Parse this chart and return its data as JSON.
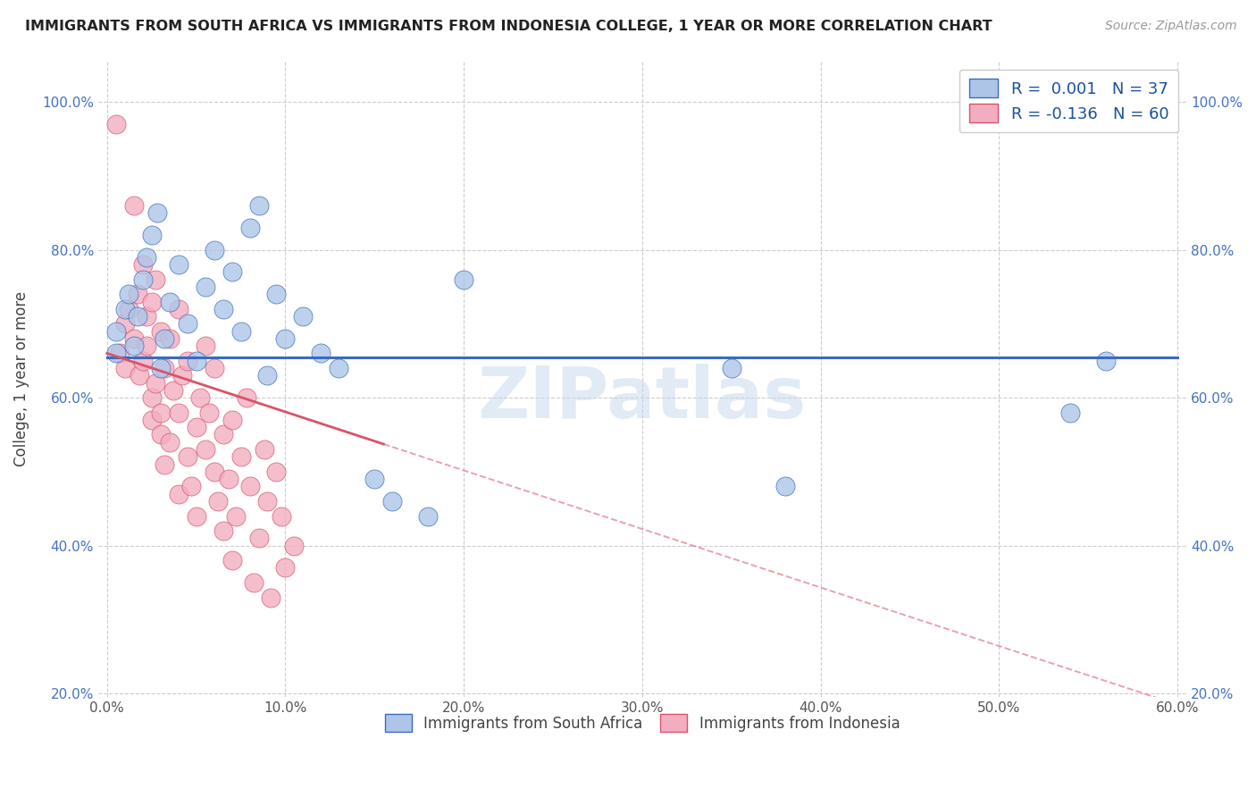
{
  "title": "IMMIGRANTS FROM SOUTH AFRICA VS IMMIGRANTS FROM INDONESIA COLLEGE, 1 YEAR OR MORE CORRELATION CHART",
  "source": "Source: ZipAtlas.com",
  "ylabel": "College, 1 year or more",
  "legend_label_1": "Immigrants from South Africa",
  "legend_label_2": "Immigrants from Indonesia",
  "legend_r1": "R =  0.001",
  "legend_n1": "N = 37",
  "legend_r2": "R = -0.136",
  "legend_n2": "N = 60",
  "color_blue": "#adc6e8",
  "color_pink": "#f2aec0",
  "trend_blue": "#3a6bbf",
  "trend_pink": "#d9536a",
  "xlim": [
    -0.005,
    0.605
  ],
  "ylim": [
    0.195,
    1.055
  ],
  "xticks": [
    0.0,
    0.1,
    0.2,
    0.3,
    0.4,
    0.5,
    0.6
  ],
  "xticklabels": [
    "0.0%",
    "10.0%",
    "20.0%",
    "30.0%",
    "40.0%",
    "50.0%",
    "60.0%"
  ],
  "yticks": [
    0.2,
    0.4,
    0.6,
    0.8,
    1.0
  ],
  "yticklabels": [
    "20.0%",
    "40.0%",
    "60.0%",
    "80.0%",
    "100.0%"
  ],
  "sa_x": [
    0.005,
    0.005,
    0.01,
    0.012,
    0.015,
    0.017,
    0.02,
    0.022,
    0.025,
    0.028,
    0.03,
    0.032,
    0.035,
    0.04,
    0.045,
    0.05,
    0.055,
    0.06,
    0.065,
    0.07,
    0.075,
    0.08,
    0.085,
    0.09,
    0.095,
    0.1,
    0.11,
    0.12,
    0.13,
    0.15,
    0.16,
    0.18,
    0.2,
    0.35,
    0.38,
    0.54,
    0.56
  ],
  "sa_y": [
    0.66,
    0.69,
    0.72,
    0.74,
    0.67,
    0.71,
    0.76,
    0.79,
    0.82,
    0.85,
    0.64,
    0.68,
    0.73,
    0.78,
    0.7,
    0.65,
    0.75,
    0.8,
    0.72,
    0.77,
    0.69,
    0.83,
    0.86,
    0.63,
    0.74,
    0.68,
    0.71,
    0.66,
    0.64,
    0.49,
    0.46,
    0.44,
    0.76,
    0.64,
    0.48,
    0.58,
    0.65
  ],
  "ind_x": [
    0.005,
    0.007,
    0.01,
    0.01,
    0.012,
    0.015,
    0.015,
    0.017,
    0.018,
    0.02,
    0.02,
    0.022,
    0.022,
    0.025,
    0.025,
    0.025,
    0.027,
    0.027,
    0.03,
    0.03,
    0.03,
    0.032,
    0.032,
    0.035,
    0.035,
    0.037,
    0.04,
    0.04,
    0.04,
    0.042,
    0.045,
    0.045,
    0.047,
    0.05,
    0.05,
    0.052,
    0.055,
    0.055,
    0.057,
    0.06,
    0.06,
    0.062,
    0.065,
    0.065,
    0.068,
    0.07,
    0.07,
    0.072,
    0.075,
    0.078,
    0.08,
    0.082,
    0.085,
    0.088,
    0.09,
    0.092,
    0.095,
    0.098,
    0.1,
    0.105
  ],
  "ind_y": [
    0.97,
    0.66,
    0.7,
    0.64,
    0.72,
    0.86,
    0.68,
    0.74,
    0.63,
    0.78,
    0.65,
    0.71,
    0.67,
    0.6,
    0.73,
    0.57,
    0.76,
    0.62,
    0.69,
    0.55,
    0.58,
    0.64,
    0.51,
    0.68,
    0.54,
    0.61,
    0.72,
    0.58,
    0.47,
    0.63,
    0.65,
    0.52,
    0.48,
    0.56,
    0.44,
    0.6,
    0.67,
    0.53,
    0.58,
    0.64,
    0.5,
    0.46,
    0.55,
    0.42,
    0.49,
    0.38,
    0.57,
    0.44,
    0.52,
    0.6,
    0.48,
    0.35,
    0.41,
    0.53,
    0.46,
    0.33,
    0.5,
    0.44,
    0.37,
    0.4
  ],
  "blue_line_y": 0.655,
  "pink_line_x0": 0.0,
  "pink_line_y0": 0.66,
  "pink_line_x1": 0.6,
  "pink_line_y1": 0.185,
  "pink_solid_xend": 0.155,
  "watermark": "ZIPatlas",
  "background_color": "#ffffff",
  "grid_color": "#cccccc"
}
